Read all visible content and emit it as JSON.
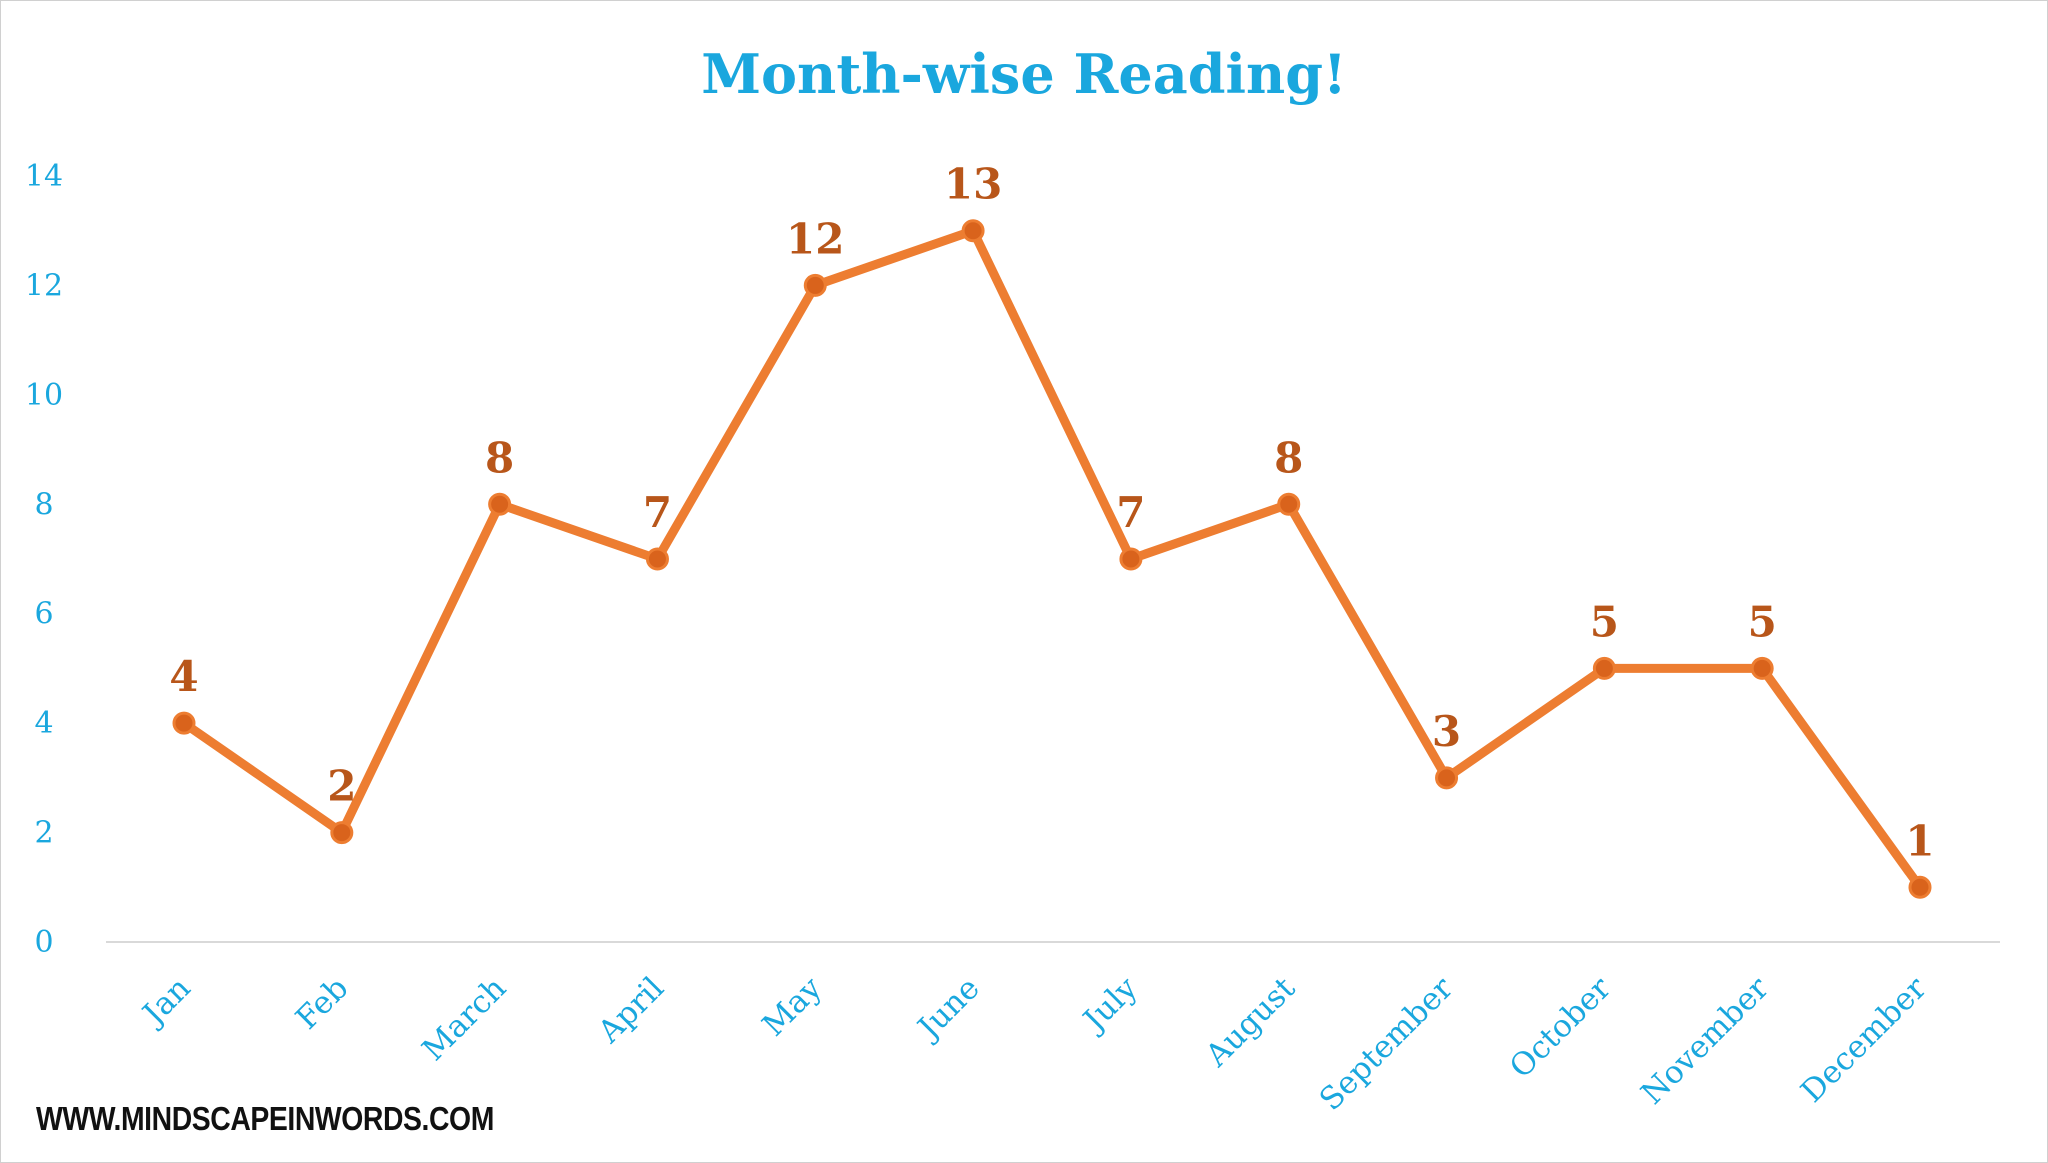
{
  "chart_data": {
    "type": "line",
    "title": "Month-wise Reading!",
    "xlabel": "",
    "ylabel": "",
    "categories": [
      "Jan",
      "Feb",
      "March",
      "April",
      "May",
      "June",
      "July",
      "August",
      "September",
      "October",
      "November",
      "December"
    ],
    "series": [
      {
        "values": [
          4,
          2,
          8,
          7,
          12,
          13,
          7,
          8,
          3,
          5,
          5,
          1
        ]
      }
    ],
    "ylim": [
      0,
      14
    ],
    "yticks": [
      "0",
      "2",
      "4",
      "6",
      "8",
      "10",
      "12",
      "14"
    ],
    "data_labels": true,
    "grid": false,
    "legend": "none",
    "colors": {
      "line": "#ed7d31",
      "marker": "#d9631c",
      "labels": "#b8561a",
      "axis_text": "#1aa7de",
      "title": "#1aa7de",
      "baseline": "#d9d9d9"
    }
  },
  "watermark": "WWW.MINDSCAPEINWORDS.COM"
}
